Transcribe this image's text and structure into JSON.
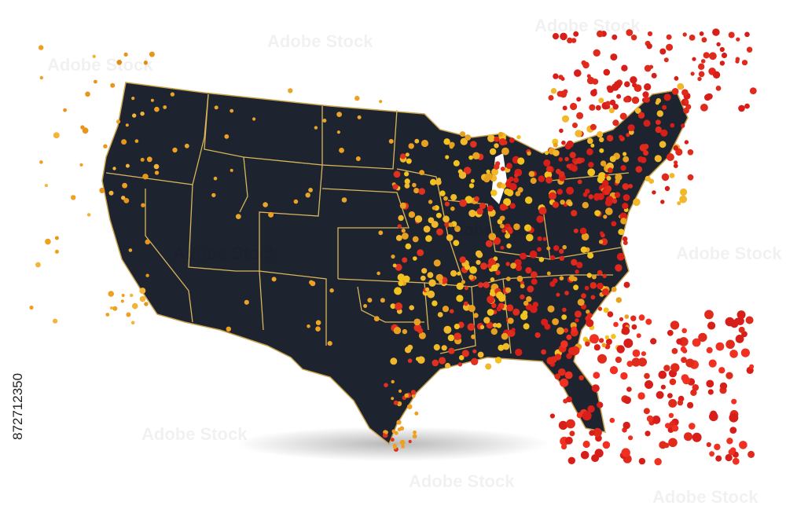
{
  "image_id": "872712350",
  "watermark": "Adobe Stock"
}
